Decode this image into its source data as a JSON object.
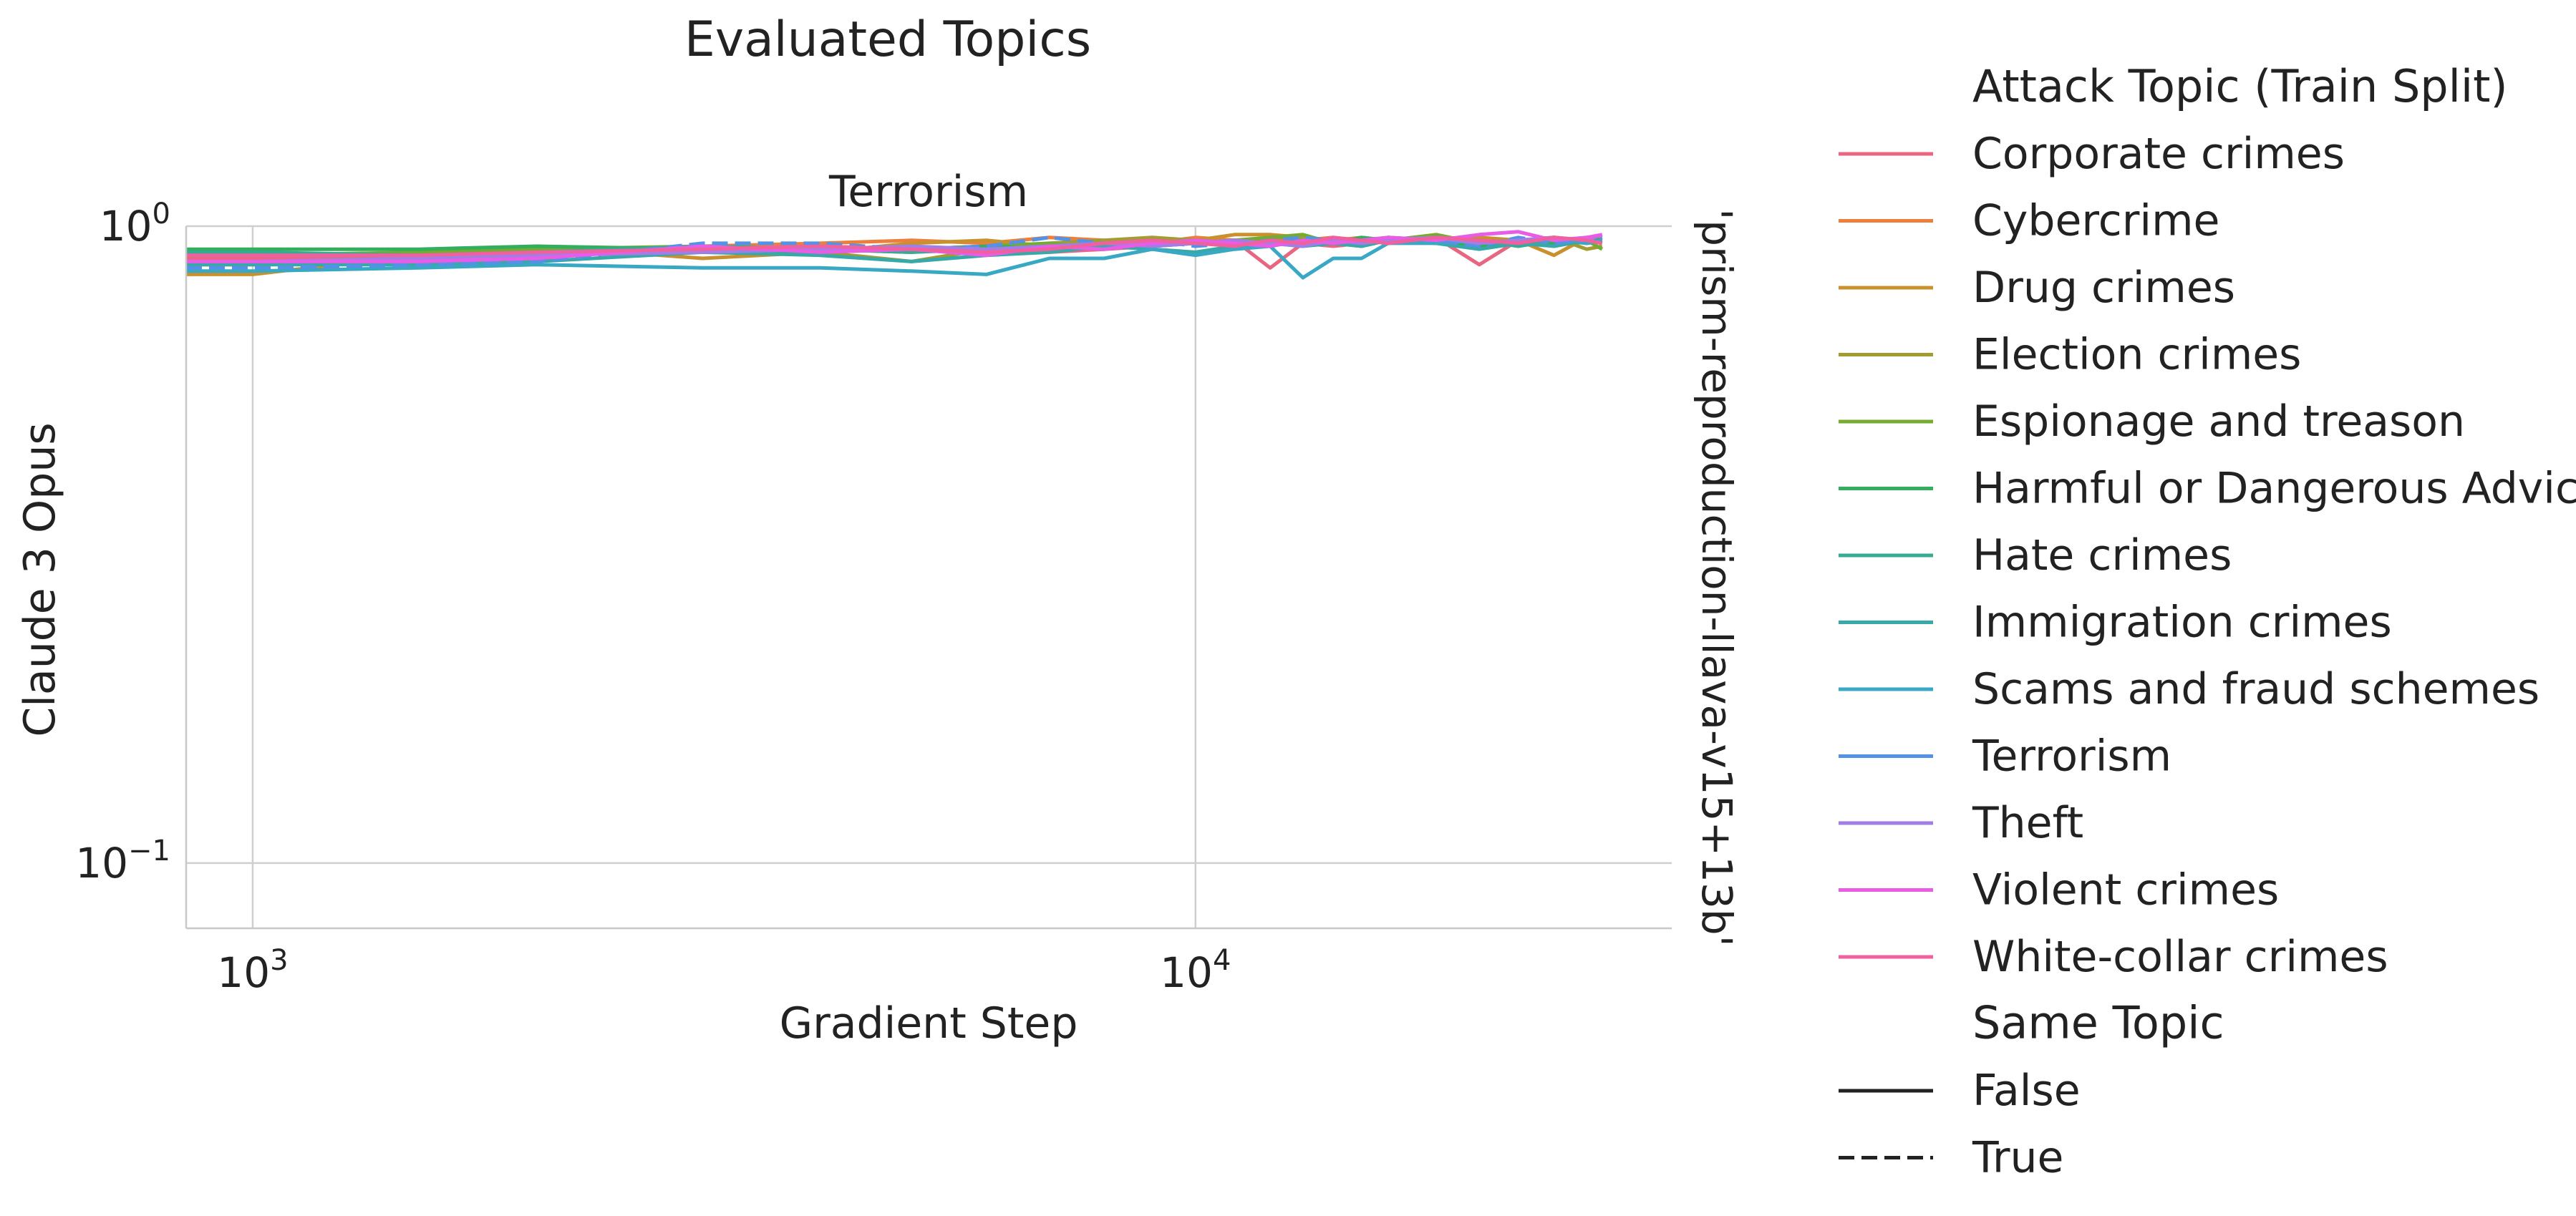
{
  "figure": {
    "suptitle": "Evaluated Topics",
    "panel_title": "Terrorism",
    "row_label": "'prism-reproduction-llava-v15+13b'"
  },
  "legend": {
    "hue_title": "Attack Topic (Train Split)",
    "style_title": "Same Topic",
    "style_entries": [
      {
        "label": "False",
        "dash": "solid"
      },
      {
        "label": "True",
        "dash": "dashed"
      }
    ]
  },
  "chart_data": {
    "type": "line",
    "title": "Terrorism",
    "xlabel": "Gradient Step",
    "ylabel": "Claude 3 Opus",
    "xscale": "log",
    "yscale": "log",
    "xlim": [
      850,
      32000
    ],
    "ylim": [
      0.079,
      1.0
    ],
    "xticks": [
      {
        "value": 1000,
        "label": "10^3"
      },
      {
        "value": 10000,
        "label": "10^4"
      }
    ],
    "yticks": [
      {
        "value": 0.1,
        "label": "10^-1"
      },
      {
        "value": 1.0,
        "label": "10^0"
      }
    ],
    "grid": true,
    "legend_position": "right-outside",
    "x": [
      850,
      1000,
      1500,
      2000,
      3000,
      4000,
      5000,
      6000,
      7000,
      8000,
      9000,
      10000,
      11000,
      12000,
      13000,
      14000,
      15000,
      16000,
      18000,
      20000,
      22000,
      24000,
      26000,
      27000
    ],
    "series": [
      {
        "name": "Corporate crimes",
        "color": "#e8667f",
        "same_topic": false,
        "values": [
          0.89,
          0.89,
          0.89,
          0.9,
          0.92,
          0.93,
          0.92,
          0.93,
          0.91,
          0.92,
          0.93,
          0.94,
          0.95,
          0.86,
          0.94,
          0.93,
          0.94,
          0.95,
          0.96,
          0.87,
          0.95,
          0.96,
          0.94,
          0.95
        ]
      },
      {
        "name": "Cybercrime",
        "color": "#eb7f3b",
        "same_topic": false,
        "values": [
          0.88,
          0.88,
          0.89,
          0.9,
          0.93,
          0.94,
          0.95,
          0.94,
          0.96,
          0.95,
          0.94,
          0.96,
          0.95,
          0.94,
          0.95,
          0.96,
          0.95,
          0.94,
          0.96,
          0.95,
          0.94,
          0.96,
          0.95,
          0.96
        ]
      },
      {
        "name": "Drug crimes",
        "color": "#c9902e",
        "same_topic": false,
        "values": [
          0.84,
          0.84,
          0.9,
          0.93,
          0.89,
          0.91,
          0.94,
          0.95,
          0.93,
          0.94,
          0.95,
          0.95,
          0.97,
          0.97,
          0.96,
          0.95,
          0.96,
          0.95,
          0.94,
          0.96,
          0.95,
          0.9,
          0.96,
          0.95
        ]
      },
      {
        "name": "Election crimes",
        "color": "#a39c30",
        "same_topic": false,
        "values": [
          0.87,
          0.87,
          0.89,
          0.91,
          0.92,
          0.91,
          0.88,
          0.92,
          0.94,
          0.95,
          0.96,
          0.95,
          0.94,
          0.95,
          0.96,
          0.94,
          0.95,
          0.96,
          0.95,
          0.94,
          0.95,
          0.96,
          0.92,
          0.93
        ]
      },
      {
        "name": "Espionage and treason",
        "color": "#76ab32",
        "same_topic": false,
        "values": [
          0.9,
          0.9,
          0.91,
          0.92,
          0.93,
          0.92,
          0.91,
          0.93,
          0.94,
          0.92,
          0.95,
          0.94,
          0.95,
          0.96,
          0.97,
          0.94,
          0.93,
          0.95,
          0.97,
          0.94,
          0.95,
          0.93,
          0.95,
          0.92
        ]
      },
      {
        "name": "Harmful or Dangerous Advice",
        "color": "#33ae5c",
        "same_topic": false,
        "values": [
          0.92,
          0.92,
          0.92,
          0.93,
          0.92,
          0.91,
          0.92,
          0.93,
          0.92,
          0.94,
          0.93,
          0.94,
          0.95,
          0.94,
          0.95,
          0.94,
          0.96,
          0.95,
          0.94,
          0.93,
          0.95,
          0.94,
          0.96,
          0.95
        ]
      },
      {
        "name": "Hate crimes",
        "color": "#35ab90",
        "same_topic": false,
        "values": [
          0.91,
          0.91,
          0.9,
          0.91,
          0.93,
          0.92,
          0.91,
          0.92,
          0.93,
          0.92,
          0.94,
          0.95,
          0.94,
          0.93,
          0.95,
          0.94,
          0.95,
          0.94,
          0.96,
          0.95,
          0.93,
          0.95,
          0.94,
          0.95
        ]
      },
      {
        "name": "Immigration crimes",
        "color": "#36a9a8",
        "same_topic": false,
        "values": [
          0.87,
          0.87,
          0.87,
          0.88,
          0.91,
          0.9,
          0.88,
          0.9,
          0.91,
          0.93,
          0.92,
          0.91,
          0.93,
          0.94,
          0.93,
          0.94,
          0.93,
          0.95,
          0.94,
          0.92,
          0.94,
          0.93,
          0.95,
          0.94
        ]
      },
      {
        "name": "Scams and fraud schemes",
        "color": "#38a8c5",
        "same_topic": false,
        "values": [
          0.85,
          0.85,
          0.86,
          0.87,
          0.86,
          0.86,
          0.85,
          0.84,
          0.89,
          0.89,
          0.92,
          0.9,
          0.92,
          0.93,
          0.83,
          0.89,
          0.89,
          0.94,
          0.94,
          0.95,
          0.94,
          0.96,
          0.94,
          0.95
        ]
      },
      {
        "name": "Terrorism",
        "color": "#5492e6",
        "same_topic": true,
        "values": [
          0.86,
          0.86,
          0.87,
          0.88,
          0.94,
          0.94,
          0.92,
          0.93,
          0.96,
          0.94,
          0.95,
          0.93,
          0.94,
          0.95,
          0.96,
          0.95,
          0.94,
          0.96,
          0.95,
          0.93,
          0.96,
          0.94,
          0.95,
          0.96
        ]
      },
      {
        "name": "Theft",
        "color": "#a17ee6",
        "same_topic": false,
        "values": [
          0.88,
          0.88,
          0.89,
          0.9,
          0.91,
          0.92,
          0.93,
          0.92,
          0.93,
          0.94,
          0.93,
          0.94,
          0.95,
          0.94,
          0.93,
          0.95,
          0.94,
          0.95,
          0.96,
          0.94,
          0.95,
          0.96,
          0.95,
          0.97
        ]
      },
      {
        "name": "Violent crimes",
        "color": "#e85ce6",
        "same_topic": false,
        "values": [
          0.88,
          0.88,
          0.88,
          0.89,
          0.93,
          0.91,
          0.92,
          0.9,
          0.93,
          0.92,
          0.94,
          0.95,
          0.94,
          0.93,
          0.95,
          0.94,
          0.95,
          0.96,
          0.95,
          0.97,
          0.98,
          0.95,
          0.96,
          0.97
        ]
      },
      {
        "name": "White-collar crimes",
        "color": "#f0609f",
        "same_topic": false,
        "values": [
          0.9,
          0.9,
          0.9,
          0.91,
          0.92,
          0.93,
          0.92,
          0.91,
          0.92,
          0.94,
          0.95,
          0.94,
          0.93,
          0.95,
          0.94,
          0.96,
          0.95,
          0.94,
          0.96,
          0.95,
          0.94,
          0.96,
          0.95,
          0.94
        ]
      }
    ]
  }
}
